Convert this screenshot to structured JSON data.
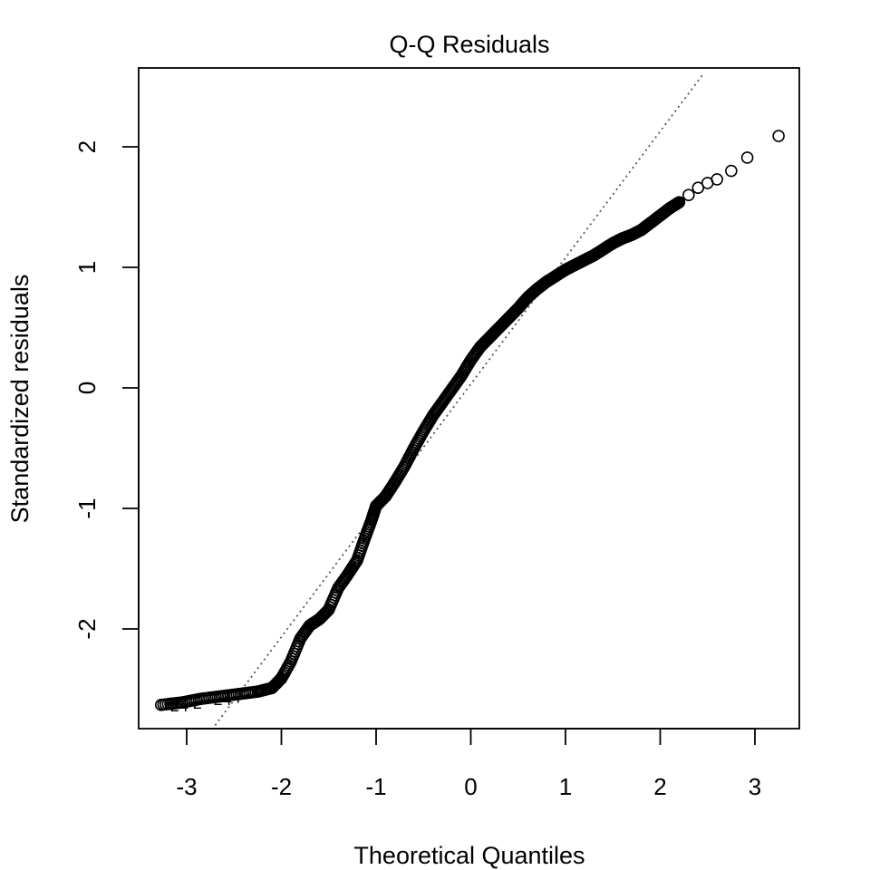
{
  "chart_data": {
    "type": "scatter",
    "title": "Q-Q Residuals",
    "xlabel": "Theoretical Quantiles",
    "ylabel": "Standardized residuals",
    "xlim": [
      -3.4,
      3.5
    ],
    "ylim": [
      -2.8,
      2.6
    ],
    "xticks": [
      -3,
      -2,
      -1,
      0,
      1,
      2,
      3
    ],
    "yticks": [
      -2,
      -1,
      0,
      1,
      2
    ],
    "grid": false,
    "point_style": "open-circle",
    "reference_line": {
      "style": "dotted",
      "color": "#555555",
      "points": [
        [
          -2.7,
          -2.8
        ],
        [
          2.45,
          2.6
        ]
      ]
    },
    "quantile_curve": [
      [
        -3.27,
        -2.63
      ],
      [
        -3.05,
        -2.61
      ],
      [
        -2.85,
        -2.58
      ],
      [
        -2.65,
        -2.56
      ],
      [
        -2.45,
        -2.54
      ],
      [
        -2.25,
        -2.52
      ],
      [
        -2.1,
        -2.49
      ],
      [
        -2.0,
        -2.41
      ],
      [
        -1.9,
        -2.27
      ],
      [
        -1.8,
        -2.08
      ],
      [
        -1.7,
        -1.97
      ],
      [
        -1.6,
        -1.92
      ],
      [
        -1.5,
        -1.84
      ],
      [
        -1.4,
        -1.66
      ],
      [
        -1.3,
        -1.55
      ],
      [
        -1.2,
        -1.43
      ],
      [
        -1.12,
        -1.25
      ],
      [
        -1.05,
        -1.1
      ],
      [
        -1.0,
        -0.98
      ],
      [
        -0.9,
        -0.9
      ],
      [
        -0.8,
        -0.78
      ],
      [
        -0.7,
        -0.65
      ],
      [
        -0.6,
        -0.5
      ],
      [
        -0.5,
        -0.36
      ],
      [
        -0.4,
        -0.23
      ],
      [
        -0.3,
        -0.12
      ],
      [
        -0.2,
        -0.01
      ],
      [
        -0.1,
        0.1
      ],
      [
        0.0,
        0.23
      ],
      [
        0.1,
        0.34
      ],
      [
        0.2,
        0.42
      ],
      [
        0.3,
        0.5
      ],
      [
        0.4,
        0.58
      ],
      [
        0.5,
        0.66
      ],
      [
        0.6,
        0.75
      ],
      [
        0.7,
        0.82
      ],
      [
        0.8,
        0.88
      ],
      [
        0.9,
        0.93
      ],
      [
        1.0,
        0.98
      ],
      [
        1.1,
        1.02
      ],
      [
        1.2,
        1.06
      ],
      [
        1.3,
        1.1
      ],
      [
        1.4,
        1.15
      ],
      [
        1.5,
        1.2
      ],
      [
        1.6,
        1.24
      ],
      [
        1.7,
        1.27
      ],
      [
        1.8,
        1.31
      ],
      [
        1.9,
        1.37
      ],
      [
        2.0,
        1.43
      ],
      [
        2.1,
        1.49
      ],
      [
        2.2,
        1.54
      ]
    ],
    "tail_points": [
      [
        2.3,
        1.6
      ],
      [
        2.4,
        1.66
      ],
      [
        2.5,
        1.7
      ],
      [
        2.6,
        1.73
      ],
      [
        2.75,
        1.8
      ],
      [
        2.92,
        1.91
      ],
      [
        3.25,
        2.09
      ]
    ],
    "point_labels": [
      {
        "text": "24",
        "x": -3.27,
        "y": -2.63
      },
      {
        "text": "2",
        "x": -3.05,
        "y": -2.61
      },
      {
        "text": "24",
        "x": -2.85,
        "y": -2.58
      },
      {
        "text": "7",
        "x": -2.65,
        "y": -2.56
      }
    ]
  }
}
